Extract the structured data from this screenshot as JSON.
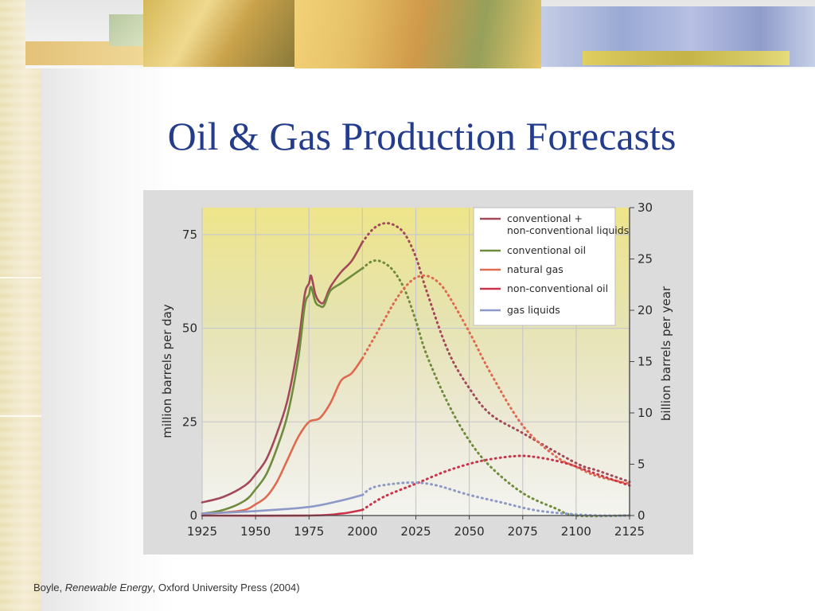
{
  "slide": {
    "title": "Oil & Gas Production Forecasts",
    "citation": {
      "author": "Boyle,",
      "book": "Renewable Energy",
      "publisher": ", Oxford University Press (2004)"
    }
  },
  "chart_data": {
    "type": "line",
    "xlabel": "",
    "ylabel_left": "million barrels per day",
    "ylabel_right": "billion barrels per year",
    "x_ticks": [
      "1925",
      "1950",
      "1975",
      "2000",
      "2025",
      "2050",
      "2075",
      "2100",
      "2125"
    ],
    "y_left_ticks": [
      "0",
      "25",
      "50",
      "75"
    ],
    "y_right_ticks": [
      "0",
      "5",
      "10",
      "15",
      "20",
      "25",
      "30"
    ],
    "xlim": [
      1925,
      2125
    ],
    "ylim_left": [
      0,
      82.2
    ],
    "ylim_right": [
      0,
      30
    ],
    "grid": true,
    "legend_position": "top-right",
    "historical_until": 2000,
    "projection_style": "dotted",
    "series": [
      {
        "name": "conventional + non-conventional liquids",
        "color": "#a24a5a",
        "points": [
          [
            1925,
            3.5
          ],
          [
            1935,
            5
          ],
          [
            1945,
            8
          ],
          [
            1950,
            11
          ],
          [
            1955,
            15
          ],
          [
            1960,
            22
          ],
          [
            1965,
            31
          ],
          [
            1970,
            46
          ],
          [
            1973,
            59
          ],
          [
            1975,
            62
          ],
          [
            1976,
            64
          ],
          [
            1978,
            59
          ],
          [
            1980,
            57
          ],
          [
            1982,
            57
          ],
          [
            1985,
            61
          ],
          [
            1990,
            65
          ],
          [
            1995,
            68
          ],
          [
            2000,
            73
          ],
          [
            2005,
            76.5
          ],
          [
            2010,
            78
          ],
          [
            2015,
            77.5
          ],
          [
            2020,
            75
          ],
          [
            2025,
            69
          ],
          [
            2030,
            60
          ],
          [
            2040,
            44
          ],
          [
            2050,
            34
          ],
          [
            2060,
            27
          ],
          [
            2075,
            22
          ],
          [
            2100,
            14
          ],
          [
            2110,
            12
          ],
          [
            2125,
            9
          ]
        ]
      },
      {
        "name": "conventional oil",
        "color": "#6f8c3d",
        "points": [
          [
            1925,
            0.5
          ],
          [
            1935,
            1.5
          ],
          [
            1945,
            4
          ],
          [
            1950,
            7
          ],
          [
            1955,
            11
          ],
          [
            1960,
            18
          ],
          [
            1965,
            27
          ],
          [
            1970,
            42
          ],
          [
            1973,
            56
          ],
          [
            1975,
            59
          ],
          [
            1976,
            61
          ],
          [
            1978,
            57
          ],
          [
            1980,
            56
          ],
          [
            1982,
            56
          ],
          [
            1985,
            60
          ],
          [
            1990,
            62
          ],
          [
            1995,
            64
          ],
          [
            2000,
            66
          ],
          [
            2005,
            68
          ],
          [
            2010,
            67.5
          ],
          [
            2015,
            65
          ],
          [
            2020,
            60
          ],
          [
            2025,
            52
          ],
          [
            2030,
            43
          ],
          [
            2040,
            30
          ],
          [
            2050,
            20
          ],
          [
            2060,
            13
          ],
          [
            2075,
            6
          ],
          [
            2090,
            2
          ],
          [
            2100,
            0
          ],
          [
            2125,
            0
          ]
        ]
      },
      {
        "name": "natural gas",
        "color": "#de6a50",
        "points": [
          [
            1925,
            0.5
          ],
          [
            1935,
            0.8
          ],
          [
            1945,
            1.5
          ],
          [
            1950,
            3
          ],
          [
            1955,
            5
          ],
          [
            1960,
            9
          ],
          [
            1965,
            15
          ],
          [
            1970,
            21
          ],
          [
            1975,
            25
          ],
          [
            1980,
            26
          ],
          [
            1985,
            30
          ],
          [
            1990,
            36
          ],
          [
            1995,
            38
          ],
          [
            2000,
            42
          ],
          [
            2005,
            47
          ],
          [
            2010,
            52
          ],
          [
            2015,
            57
          ],
          [
            2020,
            61
          ],
          [
            2025,
            63.5
          ],
          [
            2030,
            64
          ],
          [
            2035,
            62.5
          ],
          [
            2040,
            59
          ],
          [
            2050,
            49
          ],
          [
            2060,
            38
          ],
          [
            2075,
            24
          ],
          [
            2090,
            16
          ],
          [
            2100,
            13
          ],
          [
            2110,
            10.5
          ],
          [
            2125,
            8.5
          ]
        ]
      },
      {
        "name": "non-conventional oil",
        "color": "#c9344a",
        "points": [
          [
            1925,
            0
          ],
          [
            1975,
            0
          ],
          [
            1990,
            0.5
          ],
          [
            2000,
            1.5
          ],
          [
            2010,
            5
          ],
          [
            2025,
            8.5
          ],
          [
            2040,
            12
          ],
          [
            2055,
            14.5
          ],
          [
            2070,
            15.8
          ],
          [
            2080,
            15.7
          ],
          [
            2095,
            14
          ],
          [
            2110,
            11
          ],
          [
            2125,
            8
          ]
        ]
      },
      {
        "name": "gas liquids",
        "color": "#8d9ac8",
        "points": [
          [
            1925,
            0.5
          ],
          [
            1950,
            1.2
          ],
          [
            1975,
            2.3
          ],
          [
            1990,
            4
          ],
          [
            2000,
            5.5
          ],
          [
            2005,
            7.5
          ],
          [
            2015,
            8.5
          ],
          [
            2025,
            8.8
          ],
          [
            2035,
            8
          ],
          [
            2050,
            5.5
          ],
          [
            2065,
            3.5
          ],
          [
            2080,
            1.5
          ],
          [
            2095,
            0.5
          ],
          [
            2110,
            0
          ],
          [
            2125,
            0
          ]
        ]
      }
    ]
  }
}
